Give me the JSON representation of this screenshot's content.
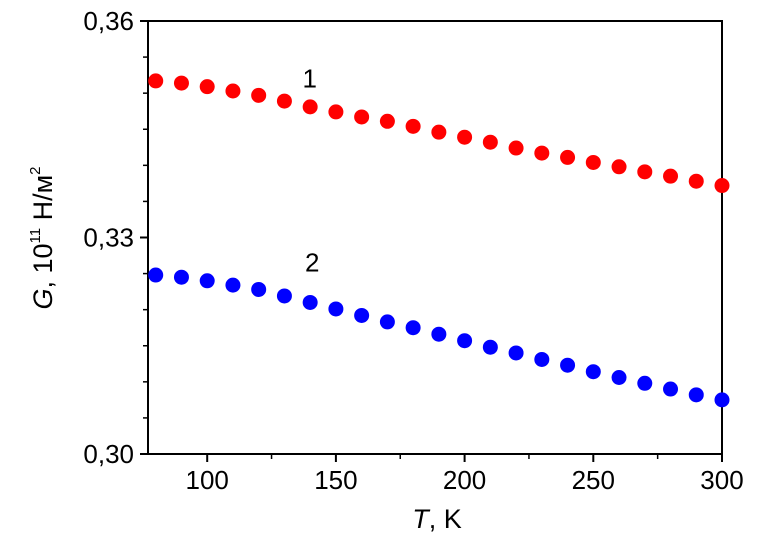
{
  "chart_data": {
    "type": "scatter",
    "xlabel_var": "T",
    "xlabel_rest": ", K",
    "ylabel_var": "G",
    "ylabel_mid": ", 10",
    "ylabel_exp": "11",
    "ylabel_unit": " Н/м",
    "ylabel_unit_exp": "2",
    "xlim": [
      77,
      300
    ],
    "ylim": [
      0.3,
      0.36
    ],
    "x_ticks": [
      100,
      150,
      200,
      250,
      300
    ],
    "x_tick_labels": [
      "100",
      "150",
      "200",
      "250",
      "300"
    ],
    "y_ticks": [
      0.3,
      0.33,
      0.36
    ],
    "y_tick_labels": [
      "0,30",
      "0,33",
      "0,36"
    ],
    "x_minor_ticks": [
      125,
      175,
      225,
      275
    ],
    "y_minor_ticks": [
      0.305,
      0.31,
      0.315,
      0.32,
      0.325,
      0.335,
      0.34,
      0.345,
      0.35,
      0.355
    ],
    "grid": false,
    "series": [
      {
        "label": "1",
        "label_at": [
          137,
          0.3508
        ],
        "color": "#ff0000",
        "points": [
          [
            80,
            0.3517
          ],
          [
            90,
            0.3514
          ],
          [
            100,
            0.3509
          ],
          [
            110,
            0.3503
          ],
          [
            120,
            0.3497
          ],
          [
            130,
            0.3489
          ],
          [
            140,
            0.3481
          ],
          [
            150,
            0.3474
          ],
          [
            160,
            0.3467
          ],
          [
            170,
            0.3461
          ],
          [
            180,
            0.3454
          ],
          [
            190,
            0.3446
          ],
          [
            200,
            0.3439
          ],
          [
            210,
            0.3432
          ],
          [
            220,
            0.3424
          ],
          [
            230,
            0.3417
          ],
          [
            240,
            0.3411
          ],
          [
            250,
            0.3404
          ],
          [
            260,
            0.3398
          ],
          [
            270,
            0.3391
          ],
          [
            280,
            0.3385
          ],
          [
            290,
            0.3378
          ],
          [
            300,
            0.3372
          ]
        ]
      },
      {
        "label": "2",
        "label_at": [
          138,
          0.3253
        ],
        "color": "#0000ff",
        "points": [
          [
            80,
            0.3248
          ],
          [
            90,
            0.3245
          ],
          [
            100,
            0.324
          ],
          [
            110,
            0.3234
          ],
          [
            120,
            0.3228
          ],
          [
            130,
            0.3219
          ],
          [
            140,
            0.321
          ],
          [
            150,
            0.3201
          ],
          [
            160,
            0.3192
          ],
          [
            170,
            0.3183
          ],
          [
            180,
            0.3175
          ],
          [
            190,
            0.3166
          ],
          [
            200,
            0.3157
          ],
          [
            210,
            0.3148
          ],
          [
            220,
            0.314
          ],
          [
            230,
            0.3131
          ],
          [
            240,
            0.3123
          ],
          [
            250,
            0.3114
          ],
          [
            260,
            0.3106
          ],
          [
            270,
            0.3098
          ],
          [
            280,
            0.309
          ],
          [
            290,
            0.3082
          ],
          [
            300,
            0.3075
          ]
        ]
      }
    ]
  }
}
